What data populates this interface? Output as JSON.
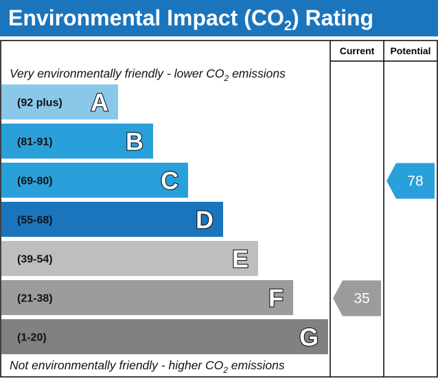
{
  "title_main": "Environmental Impact (CO",
  "title_sub": "2",
  "title_end": ") Rating",
  "columns": {
    "current": "Current",
    "potential": "Potential"
  },
  "top_note": {
    "pre": "Very environmentally friendly - lower CO",
    "sub": "2",
    "post": " emissions"
  },
  "bottom_note": {
    "pre": "Not environmentally friendly - higher CO",
    "sub": "2",
    "post": " emissions"
  },
  "chart_data": {
    "type": "bar",
    "title": "Environmental Impact (CO2) Rating",
    "bands": [
      {
        "letter": "A",
        "range": "(92 plus)",
        "min": 92,
        "max": null,
        "color": "#8ac8ea"
      },
      {
        "letter": "B",
        "range": "(81-91)",
        "min": 81,
        "max": 91,
        "color": "#2aa0db"
      },
      {
        "letter": "C",
        "range": "(69-80)",
        "min": 69,
        "max": 80,
        "color": "#2aa0db"
      },
      {
        "letter": "D",
        "range": "(55-68)",
        "min": 55,
        "max": 68,
        "color": "#1b75bd"
      },
      {
        "letter": "E",
        "range": "(39-54)",
        "min": 39,
        "max": 54,
        "color": "#bebebd"
      },
      {
        "letter": "F",
        "range": "(21-38)",
        "min": 21,
        "max": 38,
        "color": "#9c9c9d"
      },
      {
        "letter": "G",
        "range": "(1-20)",
        "min": 1,
        "max": 20,
        "color": "#818181"
      }
    ],
    "current": {
      "value": 35,
      "band": "F",
      "color": "#9c9c9d"
    },
    "potential": {
      "value": 78,
      "band": "C",
      "color": "#2aa0db"
    }
  },
  "colors": {
    "title_bg": "#1b75bd"
  }
}
